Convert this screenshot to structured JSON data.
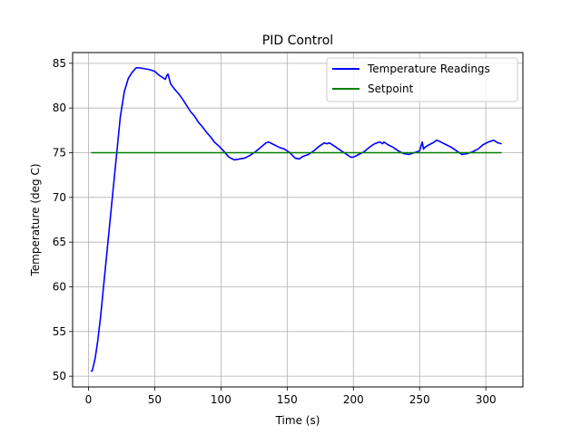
{
  "chart_data": {
    "type": "line",
    "title": "PID Control",
    "xlabel": "Time (s)",
    "ylabel": "Temperature (deg C)",
    "xlim": [
      -12,
      328
    ],
    "ylim": [
      48.8,
      86.2
    ],
    "xticks": [
      0,
      50,
      100,
      150,
      200,
      250,
      300
    ],
    "yticks": [
      50,
      55,
      60,
      65,
      70,
      75,
      80,
      85
    ],
    "grid": true,
    "legend_position": "top-right",
    "series": [
      {
        "name": "Temperature Readings",
        "color": "#0000ff",
        "x": [
          2,
          3,
          5,
          7,
          9,
          11,
          13,
          15,
          18,
          21,
          24,
          27,
          30,
          33,
          36,
          38,
          42,
          46,
          50,
          53,
          56,
          58,
          59,
          60,
          62,
          65,
          68,
          71,
          74,
          77,
          80,
          83,
          86,
          89,
          92,
          95,
          98,
          102,
          106,
          110,
          114,
          118,
          122,
          126,
          130,
          134,
          136,
          140,
          144,
          148,
          152,
          156,
          159,
          162,
          166,
          170,
          174,
          178,
          180,
          182,
          186,
          190,
          194,
          198,
          200,
          204,
          208,
          212,
          216,
          220,
          222,
          223,
          224,
          226,
          230,
          234,
          238,
          242,
          246,
          250,
          252,
          253,
          254,
          256,
          260,
          263,
          266,
          270,
          274,
          278,
          282,
          286,
          290,
          294,
          298,
          302,
          306,
          309,
          312
        ],
        "values": [
          50.5,
          50.7,
          52.0,
          54.0,
          56.5,
          59.5,
          62.5,
          65.5,
          70.0,
          74.5,
          79.0,
          81.8,
          83.3,
          84.0,
          84.5,
          84.5,
          84.4,
          84.3,
          84.1,
          83.7,
          83.4,
          83.2,
          83.6,
          83.8,
          82.7,
          82.1,
          81.6,
          81.0,
          80.3,
          79.6,
          79.1,
          78.4,
          77.9,
          77.3,
          76.8,
          76.2,
          75.8,
          75.2,
          74.5,
          74.2,
          74.3,
          74.4,
          74.7,
          75.1,
          75.6,
          76.1,
          76.2,
          75.9,
          75.6,
          75.4,
          75.0,
          74.4,
          74.3,
          74.6,
          74.8,
          75.2,
          75.7,
          76.1,
          76.0,
          76.1,
          75.7,
          75.3,
          74.9,
          74.5,
          74.5,
          74.8,
          75.1,
          75.6,
          76.0,
          76.2,
          76.0,
          76.2,
          76.1,
          75.9,
          75.6,
          75.2,
          74.9,
          74.8,
          75.0,
          75.2,
          76.2,
          75.4,
          75.6,
          75.8,
          76.1,
          76.4,
          76.2,
          75.9,
          75.6,
          75.2,
          74.8,
          74.9,
          75.1,
          75.4,
          75.9,
          76.2,
          76.4,
          76.1,
          76.0
        ]
      },
      {
        "name": "Setpoint",
        "color": "#008000",
        "x": [
          2,
          312
        ],
        "values": [
          75,
          75
        ]
      }
    ]
  }
}
